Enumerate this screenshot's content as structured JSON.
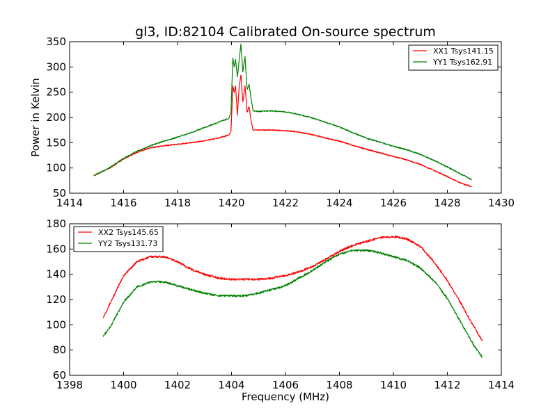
{
  "chart_data": [
    {
      "type": "line",
      "title": "gl3, ID:82104 Calibrated On-source spectrum",
      "xlabel": "",
      "ylabel": "Power in Kelvin",
      "xlim": [
        1414,
        1430
      ],
      "ylim": [
        50,
        350
      ],
      "xticks": [
        1414,
        1416,
        1418,
        1420,
        1422,
        1424,
        1426,
        1428,
        1430
      ],
      "yticks": [
        50,
        100,
        150,
        200,
        250,
        300,
        350
      ],
      "grid": false,
      "legend_position": "top-right",
      "series": [
        {
          "name": "XX1 Tsys141.15",
          "color": "#ff0000",
          "points": [
            [
              1414.9,
              85
            ],
            [
              1415.5,
              100
            ],
            [
              1416,
              118
            ],
            [
              1416.5,
              131
            ],
            [
              1417,
              140
            ],
            [
              1417.5,
              144
            ],
            [
              1418,
              147
            ],
            [
              1418.5,
              150
            ],
            [
              1419,
              154
            ],
            [
              1419.5,
              159
            ],
            [
              1419.9,
              165
            ],
            [
              1419.98,
              172
            ],
            [
              1420.05,
              262
            ],
            [
              1420.1,
              250
            ],
            [
              1420.15,
              262
            ],
            [
              1420.22,
              205
            ],
            [
              1420.28,
              258
            ],
            [
              1420.35,
              285
            ],
            [
              1420.42,
              230
            ],
            [
              1420.5,
              263
            ],
            [
              1420.58,
              210
            ],
            [
              1420.65,
              222
            ],
            [
              1420.72,
              195
            ],
            [
              1420.8,
              175
            ],
            [
              1421,
              175
            ],
            [
              1421.5,
              175
            ],
            [
              1422,
              174
            ],
            [
              1422.5,
              171
            ],
            [
              1423,
              166
            ],
            [
              1423.5,
              159
            ],
            [
              1424,
              153
            ],
            [
              1424.5,
              145
            ],
            [
              1425,
              137
            ],
            [
              1425.5,
              130
            ],
            [
              1426,
              123
            ],
            [
              1426.5,
              116
            ],
            [
              1427,
              107
            ],
            [
              1427.5,
              95
            ],
            [
              1428,
              83
            ],
            [
              1428.5,
              70
            ],
            [
              1428.9,
              63
            ]
          ]
        },
        {
          "name": "YY1 Tsys162.91",
          "color": "#008000",
          "points": [
            [
              1414.9,
              85
            ],
            [
              1415.5,
              101
            ],
            [
              1416,
              119
            ],
            [
              1416.5,
              133
            ],
            [
              1417,
              144
            ],
            [
              1417.5,
              153
            ],
            [
              1418,
              161
            ],
            [
              1418.5,
              170
            ],
            [
              1419,
              180
            ],
            [
              1419.5,
              190
            ],
            [
              1419.9,
              198
            ],
            [
              1419.98,
              210
            ],
            [
              1420.05,
              318
            ],
            [
              1420.1,
              300
            ],
            [
              1420.15,
              315
            ],
            [
              1420.22,
              280
            ],
            [
              1420.28,
              312
            ],
            [
              1420.35,
              345
            ],
            [
              1420.42,
              290
            ],
            [
              1420.5,
              320
            ],
            [
              1420.58,
              255
            ],
            [
              1420.65,
              265
            ],
            [
              1420.72,
              240
            ],
            [
              1420.8,
              213
            ],
            [
              1421,
              212
            ],
            [
              1421.5,
              213
            ],
            [
              1422,
              211
            ],
            [
              1422.5,
              206
            ],
            [
              1423,
              199
            ],
            [
              1423.5,
              190
            ],
            [
              1424,
              181
            ],
            [
              1424.5,
              170
            ],
            [
              1425,
              159
            ],
            [
              1425.5,
              151
            ],
            [
              1426,
              143
            ],
            [
              1426.5,
              136
            ],
            [
              1427,
              127
            ],
            [
              1427.5,
              115
            ],
            [
              1428,
              102
            ],
            [
              1428.5,
              88
            ],
            [
              1428.9,
              77
            ]
          ]
        }
      ]
    },
    {
      "type": "line",
      "title": "",
      "xlabel": "Frequency (MHz)",
      "ylabel": "",
      "xlim": [
        1398,
        1414
      ],
      "ylim": [
        60,
        180
      ],
      "xticks": [
        1398,
        1400,
        1402,
        1404,
        1406,
        1408,
        1410,
        1412,
        1414
      ],
      "yticks": [
        60,
        80,
        100,
        120,
        140,
        160,
        180
      ],
      "grid": false,
      "legend_position": "top-left",
      "series": [
        {
          "name": "XX2 Tsys145.65",
          "color": "#ff0000",
          "points": [
            [
              1399.25,
              106
            ],
            [
              1399.5,
              117
            ],
            [
              1400,
              139
            ],
            [
              1400.5,
              150
            ],
            [
              1401,
              154
            ],
            [
              1401.5,
              154
            ],
            [
              1402,
              150
            ],
            [
              1402.5,
              144
            ],
            [
              1403,
              140
            ],
            [
              1403.5,
              137
            ],
            [
              1404,
              136
            ],
            [
              1404.5,
              136
            ],
            [
              1405,
              136
            ],
            [
              1405.5,
              137
            ],
            [
              1406,
              139
            ],
            [
              1406.5,
              142
            ],
            [
              1407,
              146
            ],
            [
              1407.5,
              152
            ],
            [
              1408,
              158
            ],
            [
              1408.5,
              163
            ],
            [
              1409,
              166
            ],
            [
              1409.5,
              169
            ],
            [
              1410,
              170
            ],
            [
              1410.5,
              168
            ],
            [
              1411,
              162
            ],
            [
              1411.5,
              150
            ],
            [
              1412,
              135
            ],
            [
              1412.5,
              117
            ],
            [
              1413,
              98
            ],
            [
              1413.3,
              87
            ]
          ]
        },
        {
          "name": "YY2 Tsys131.73",
          "color": "#008000",
          "points": [
            [
              1399.25,
              91
            ],
            [
              1399.5,
              98
            ],
            [
              1400,
              118
            ],
            [
              1400.5,
              130
            ],
            [
              1401,
              134
            ],
            [
              1401.5,
              134
            ],
            [
              1402,
              131
            ],
            [
              1402.5,
              128
            ],
            [
              1403,
              125
            ],
            [
              1403.5,
              123
            ],
            [
              1404,
              123
            ],
            [
              1404.5,
              123
            ],
            [
              1405,
              125
            ],
            [
              1405.5,
              128
            ],
            [
              1406,
              131
            ],
            [
              1406.5,
              137
            ],
            [
              1407,
              143
            ],
            [
              1407.5,
              150
            ],
            [
              1408,
              156
            ],
            [
              1408.5,
              159
            ],
            [
              1409,
              159
            ],
            [
              1409.5,
              157
            ],
            [
              1410,
              154
            ],
            [
              1410.5,
              151
            ],
            [
              1411,
              145
            ],
            [
              1411.5,
              135
            ],
            [
              1412,
              121
            ],
            [
              1412.5,
              102
            ],
            [
              1413,
              83
            ],
            [
              1413.3,
              74
            ]
          ]
        }
      ]
    }
  ]
}
